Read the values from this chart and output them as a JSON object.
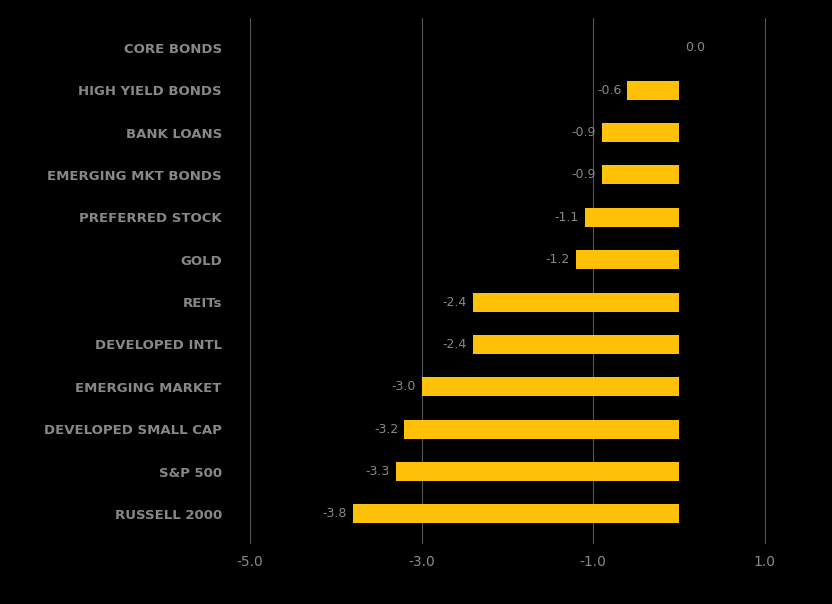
{
  "categories": [
    "RUSSELL 2000",
    "S&P 500",
    "DEVELOPED SMALL CAP",
    "EMERGING MARKET",
    "DEVELOPED INTL",
    "REITs",
    "GOLD",
    "PREFERRED STOCK",
    "EMERGING MKT BONDS",
    "BANK LOANS",
    "HIGH YIELD BONDS",
    "CORE BONDS"
  ],
  "values": [
    -3.8,
    -3.3,
    -3.2,
    -3.0,
    -2.4,
    -2.4,
    -1.2,
    -1.1,
    -0.9,
    -0.9,
    -0.6,
    0.0
  ],
  "value_labels": [
    "-3.8",
    "-3.3",
    "-3.2",
    "-3.0",
    "-2.4",
    "-2.4",
    "-1.2",
    "-1.1",
    "-0.9",
    "-0.9",
    "-0.6",
    "0.0"
  ],
  "bar_color": "#FFC107",
  "label_color": "#888888",
  "value_color": "#888888",
  "background_color": "#000000",
  "tick_color": "#888888",
  "gridline_color": "#555555",
  "xlim": [
    -5.2,
    1.3
  ],
  "xticks": [
    -5.0,
    -3.0,
    -1.0,
    1.0
  ],
  "xtick_labels": [
    "-5.0",
    "-3.0",
    "-1.0",
    "1.0"
  ],
  "bar_height": 0.45,
  "figsize": [
    8.32,
    6.04
  ],
  "dpi": 100,
  "value_fontsize": 9,
  "label_fontsize": 9.5,
  "tick_fontsize": 10
}
